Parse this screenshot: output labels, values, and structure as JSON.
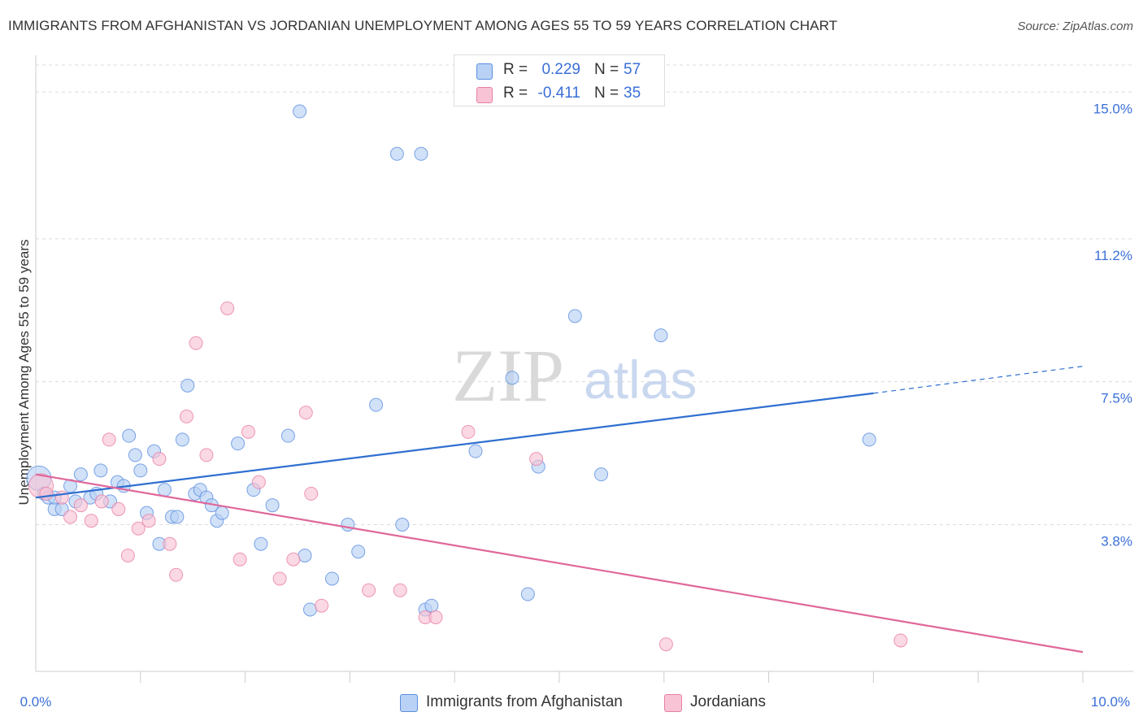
{
  "chart_data": {
    "type": "scatter",
    "title": "IMMIGRANTS FROM AFGHANISTAN VS JORDANIAN UNEMPLOYMENT AMONG AGES 55 TO 59 YEARS CORRELATION CHART",
    "source": "Source: ZipAtlas.com",
    "ylabel": "Unemployment Among Ages 55 to 59 years",
    "xlabel": "",
    "xlim": [
      0,
      10
    ],
    "ylim": [
      0,
      15.7
    ],
    "x_tick_labels": [
      "0.0%",
      "10.0%"
    ],
    "y_ticks": [
      {
        "value": 15.0,
        "label": "15.0%"
      },
      {
        "value": 11.2,
        "label": "11.2%"
      },
      {
        "value": 7.5,
        "label": "7.5%"
      },
      {
        "value": 3.8,
        "label": "3.8%"
      }
    ],
    "watermark": {
      "zip": "ZIP",
      "atlas": "atlas"
    },
    "series": [
      {
        "name": "Immigrants from Afghanistan",
        "color": "#5b8fe0",
        "fill": "#b9d1f5",
        "R": "0.229",
        "N": "57",
        "trend": {
          "x0": 0,
          "y0": 4.5,
          "x1": 8.0,
          "y1": 7.2,
          "x_dash_end": 10.0,
          "y_dash_end": 7.9
        },
        "points": [
          [
            0.03,
            5.0
          ],
          [
            0.08,
            4.6
          ],
          [
            0.12,
            4.5
          ],
          [
            0.18,
            4.2
          ],
          [
            0.25,
            4.2
          ],
          [
            0.33,
            4.8
          ],
          [
            0.38,
            4.4
          ],
          [
            0.43,
            5.1
          ],
          [
            0.52,
            4.5
          ],
          [
            0.58,
            4.6
          ],
          [
            0.62,
            5.2
          ],
          [
            0.71,
            4.4
          ],
          [
            0.78,
            4.9
          ],
          [
            0.84,
            4.8
          ],
          [
            0.89,
            6.1
          ],
          [
            0.95,
            5.6
          ],
          [
            1.0,
            5.2
          ],
          [
            1.06,
            4.1
          ],
          [
            1.13,
            5.7
          ],
          [
            1.18,
            3.3
          ],
          [
            1.23,
            4.7
          ],
          [
            1.3,
            4.0
          ],
          [
            1.35,
            4.0
          ],
          [
            1.4,
            6.0
          ],
          [
            1.45,
            7.4
          ],
          [
            1.52,
            4.6
          ],
          [
            1.57,
            4.7
          ],
          [
            1.63,
            4.5
          ],
          [
            1.68,
            4.3
          ],
          [
            1.73,
            3.9
          ],
          [
            1.78,
            4.1
          ],
          [
            1.93,
            5.9
          ],
          [
            2.08,
            4.7
          ],
          [
            2.15,
            3.3
          ],
          [
            2.26,
            4.3
          ],
          [
            2.41,
            6.1
          ],
          [
            2.52,
            14.5
          ],
          [
            2.57,
            3.0
          ],
          [
            2.62,
            1.6
          ],
          [
            2.83,
            2.4
          ],
          [
            2.98,
            3.8
          ],
          [
            3.08,
            3.1
          ],
          [
            3.25,
            6.9
          ],
          [
            3.45,
            13.4
          ],
          [
            3.5,
            3.8
          ],
          [
            3.68,
            13.4
          ],
          [
            3.72,
            1.6
          ],
          [
            3.78,
            1.7
          ],
          [
            4.2,
            5.7
          ],
          [
            4.55,
            7.6
          ],
          [
            4.7,
            2.0
          ],
          [
            4.8,
            5.3
          ],
          [
            5.15,
            9.2
          ],
          [
            5.4,
            5.1
          ],
          [
            5.97,
            8.7
          ],
          [
            7.96,
            6.0
          ],
          [
            0.18,
            4.5
          ]
        ]
      },
      {
        "name": "Jordanians",
        "color": "#e87fa4",
        "fill": "#f7c3d5",
        "R": "-0.411",
        "N": "35",
        "trend": {
          "x0": 0,
          "y0": 5.1,
          "x1": 10.0,
          "y1": 0.5
        },
        "points": [
          [
            0.05,
            4.8
          ],
          [
            0.1,
            4.6
          ],
          [
            0.25,
            4.5
          ],
          [
            0.33,
            4.0
          ],
          [
            0.43,
            4.3
          ],
          [
            0.53,
            3.9
          ],
          [
            0.63,
            4.4
          ],
          [
            0.7,
            6.0
          ],
          [
            0.79,
            4.2
          ],
          [
            0.88,
            3.0
          ],
          [
            0.98,
            3.7
          ],
          [
            1.08,
            3.9
          ],
          [
            1.18,
            5.5
          ],
          [
            1.28,
            3.3
          ],
          [
            1.34,
            2.5
          ],
          [
            1.44,
            6.6
          ],
          [
            1.53,
            8.5
          ],
          [
            1.63,
            5.6
          ],
          [
            1.83,
            9.4
          ],
          [
            1.95,
            2.9
          ],
          [
            2.03,
            6.2
          ],
          [
            2.13,
            4.9
          ],
          [
            2.33,
            2.4
          ],
          [
            2.46,
            2.9
          ],
          [
            2.58,
            6.7
          ],
          [
            2.63,
            4.6
          ],
          [
            2.73,
            1.7
          ],
          [
            3.18,
            2.1
          ],
          [
            3.48,
            2.1
          ],
          [
            3.72,
            1.4
          ],
          [
            3.82,
            1.4
          ],
          [
            4.13,
            6.2
          ],
          [
            4.78,
            5.5
          ],
          [
            6.02,
            0.7
          ],
          [
            8.26,
            0.8
          ]
        ]
      }
    ],
    "legend": {
      "r_label": "R =",
      "n_label": "N =",
      "placement": "top-center"
    }
  }
}
